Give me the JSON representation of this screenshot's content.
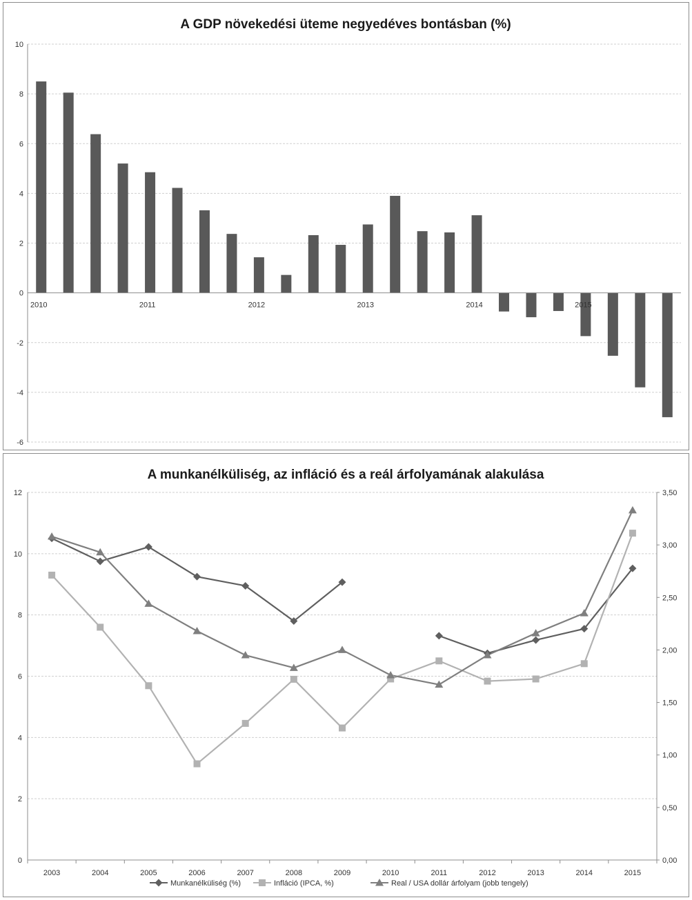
{
  "chart_data": [
    {
      "type": "bar",
      "title": "A GDP növekedési üteme negyedéves bontásban (%)",
      "ylim": [
        -6,
        10
      ],
      "yticks": [
        "10",
        "8",
        "6",
        "4",
        "2",
        "0",
        "-2",
        "-4",
        "-6"
      ],
      "year_labels": [
        {
          "label": "2010",
          "index": 0
        },
        {
          "label": "2011",
          "index": 4
        },
        {
          "label": "2012",
          "index": 8
        },
        {
          "label": "2013",
          "index": 12
        },
        {
          "label": "2014",
          "index": 16
        },
        {
          "label": "2015",
          "index": 20
        }
      ],
      "values": [
        8.5,
        8.05,
        6.38,
        5.2,
        4.85,
        4.22,
        3.32,
        2.37,
        1.43,
        0.72,
        2.32,
        1.93,
        2.75,
        3.9,
        2.48,
        2.43,
        3.12,
        -0.75,
        -0.98,
        -0.73,
        -1.74,
        -2.53,
        -3.8,
        -5.0
      ],
      "bar_color": "#595959",
      "grid": true
    },
    {
      "type": "line",
      "title": "A munkanélküliség, az infláció és a reál árfolyamának alakulása",
      "categories": [
        "2003",
        "2004",
        "2005",
        "2006",
        "2007",
        "2008",
        "2009",
        "2010",
        "2011",
        "2012",
        "2013",
        "2014",
        "2015"
      ],
      "ylim": [
        0,
        12
      ],
      "yticks": [
        "0",
        "2",
        "4",
        "6",
        "8",
        "10",
        "12"
      ],
      "y2lim": [
        0,
        3.5
      ],
      "y2ticks": [
        "0,00",
        "0,50",
        "1,00",
        "1,50",
        "2,00",
        "2,50",
        "3,00",
        "3,50"
      ],
      "grid": true,
      "legend_position": "bottom",
      "series": [
        {
          "name": "Munkanélküliség (%)",
          "axis": "left",
          "marker": "diamond",
          "color": "#5f5f5f",
          "values": [
            10.5,
            9.75,
            10.22,
            9.25,
            8.95,
            7.8,
            9.07,
            null,
            7.32,
            6.75,
            7.18,
            7.55,
            9.52
          ]
        },
        {
          "name": "Infláció (IPCA, %)",
          "axis": "left",
          "marker": "square",
          "color": "#b2b2b2",
          "values": [
            9.3,
            7.6,
            5.69,
            3.14,
            4.46,
            5.9,
            4.31,
            5.91,
            6.5,
            5.84,
            5.91,
            6.41,
            10.67
          ]
        },
        {
          "name": "Real / USA dollár árfolyam (jobb tengely)",
          "axis": "right",
          "marker": "triangle",
          "color": "#7f7f7f",
          "values": [
            3.08,
            2.93,
            2.44,
            2.18,
            1.95,
            1.83,
            2.0,
            1.76,
            1.67,
            1.95,
            2.16,
            2.35,
            3.33
          ]
        }
      ]
    }
  ]
}
